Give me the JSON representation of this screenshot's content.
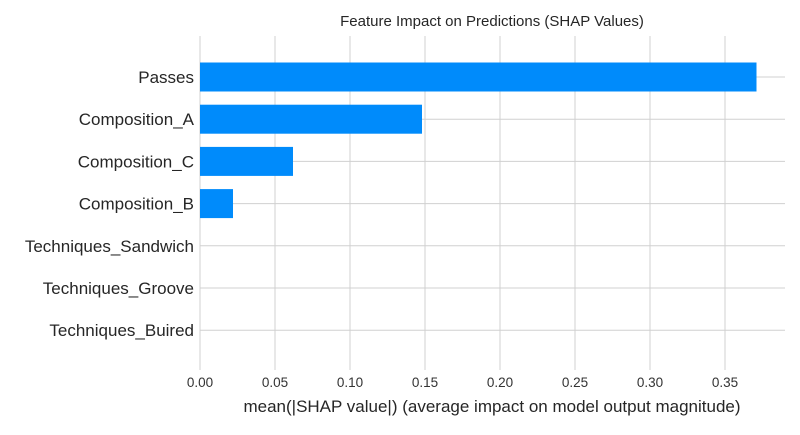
{
  "chart_data": {
    "type": "bar",
    "orientation": "horizontal",
    "title": "Feature Impact on Predictions (SHAP Values)",
    "xlabel": "mean(|SHAP value|) (average impact on model output magnitude)",
    "ylabel": "",
    "categories": [
      "Passes",
      "Composition_A",
      "Composition_C",
      "Composition_B",
      "Techniques_Sandwich",
      "Techniques_Groove",
      "Techniques_Buired"
    ],
    "values": [
      0.371,
      0.148,
      0.062,
      0.022,
      0.0,
      0.0,
      0.0
    ],
    "xlim": [
      0,
      0.39
    ],
    "xticks": [
      0.0,
      0.05,
      0.1,
      0.15,
      0.2,
      0.25,
      0.3,
      0.35
    ],
    "xtick_labels": [
      "0.00",
      "0.05",
      "0.10",
      "0.15",
      "0.20",
      "0.25",
      "0.30",
      "0.35"
    ],
    "grid": true,
    "bar_color": "#008bfb"
  }
}
